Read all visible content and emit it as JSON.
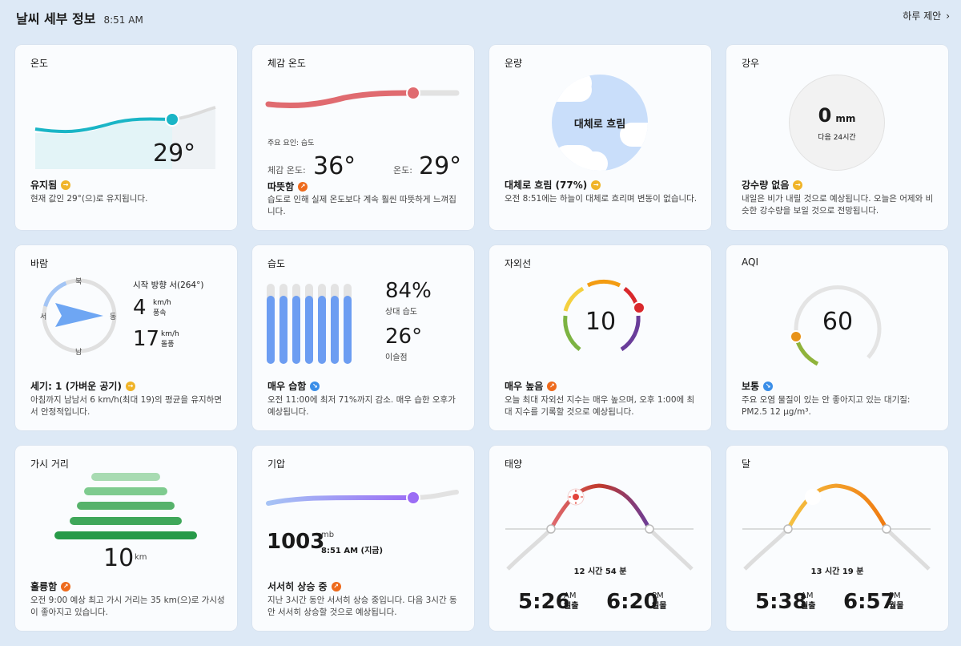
{
  "header": {
    "title": "날씨 세부 정보",
    "time": "8:51 AM",
    "day_link": "하루 제안",
    "chevron": "chevron-right-icon"
  },
  "temperature": {
    "title": "온도",
    "value": "29°",
    "status": "유지됨",
    "desc": "현재 값인 29°(으)로 유지됩니다.",
    "trend": "steady"
  },
  "feels_like": {
    "title": "체감 온도",
    "factor": "주요 요인: 습도",
    "feels_label": "체감 온도:",
    "feels_value": "36°",
    "temp_label": "온도:",
    "temp_value": "29°",
    "status": "따뜻함",
    "desc": "습도로 인해 실제 온도보다 계속 훨씬 따뜻하게 느껴집니다.",
    "trend": "up"
  },
  "cloud": {
    "title": "운량",
    "center_text": "대체로 흐림",
    "status": "대체로 흐림 (77%)",
    "desc": "오전 8:51에는 하늘이 대체로 흐리며 변동이 없습니다.",
    "trend": "steady"
  },
  "rain": {
    "title": "강우",
    "value": "0",
    "unit": "mm",
    "sub": "다음 24시간",
    "status": "강수량 없음",
    "desc": "내일은 비가 내릴 것으로 예상됩니다. 오늘은 어제와 비슷한 강수량을 보일 것으로 전망됩니다.",
    "trend": "steady"
  },
  "wind": {
    "title": "바람",
    "direction": "시작 방향 서(264°)",
    "n": "북",
    "e": "동",
    "s": "남",
    "w": "서",
    "speed": "4",
    "speed_unit": "km/h",
    "speed_label": "풍속",
    "gust": "17",
    "gust_unit": "km/h",
    "gust_label": "돌풍",
    "status": "세기: 1 (가벼운 공기)",
    "desc": "아침까지 남남서 6 km/h(최대 19)의 평균을 유지하면서 안정적입니다.",
    "trend": "steady"
  },
  "humidity": {
    "title": "습도",
    "value": "84%",
    "value_label": "상대 습도",
    "dew": "26°",
    "dew_label": "이슬점",
    "bars": [
      0.85,
      0.85,
      0.85,
      0.85,
      0.85,
      0.85,
      0.85
    ],
    "status": "매우 습함",
    "desc": "오전 11:00에 최저 71%까지 감소. 매우 습한 오후가 예상됩니다.",
    "trend": "down"
  },
  "uv": {
    "title": "자외선",
    "value": "10",
    "status": "매우 높음",
    "desc": "오늘 최대 자외선 지수는 매우 높으며, 오후 1:00에 최대 지수를 기록할 것으로 예상됩니다.",
    "trend": "up"
  },
  "aqi": {
    "title": "AQI",
    "value": "60",
    "status": "보통",
    "desc": "주요 오염 물질이 있는 안 좋아지고 있는 대기질: PM2.5 12 μg/m³.",
    "trend": "down"
  },
  "visibility": {
    "title": "가시 거리",
    "value": "10",
    "unit": "km",
    "status": "훌륭함",
    "desc": "오전 9:00 예상 최고 가시 거리는 35 km(으)로 가시성이 좋아지고 있습니다.",
    "trend": "up"
  },
  "pressure": {
    "title": "기압",
    "value": "1003",
    "unit": "mb",
    "time": "8:51 AM (지금)",
    "status": "서서히 상승 중",
    "desc": "지난 3시간 동안 서서히 상승 중입니다. 다음 3시간 동안 서서히 상승할 것으로 예상됩니다.",
    "trend": "up"
  },
  "sun": {
    "title": "태양",
    "duration": "12 시간 54 분",
    "rise": "5:26",
    "rise_ampm": "AM",
    "rise_label": "일출",
    "set": "6:20",
    "set_ampm": "PM",
    "set_label": "일몰",
    "icon": "sun-icon"
  },
  "moon": {
    "title": "달",
    "duration": "13 시간 19 분",
    "rise": "5:38",
    "rise_ampm": "AM",
    "rise_label": "월출",
    "set": "6:57",
    "set_ampm": "PM",
    "set_label": "월몰",
    "icon": "moon-icon"
  },
  "colors": {
    "temp": "#1ab5c6",
    "feels": "#e06b70",
    "uv_dot": "#d9292d",
    "aqi_dot": "#e8931a",
    "pressure": "#9b6df5",
    "humidity_bar": "#6c9df2",
    "sun_arc": "#c0392b",
    "moon_arc": "#f08a1c"
  }
}
